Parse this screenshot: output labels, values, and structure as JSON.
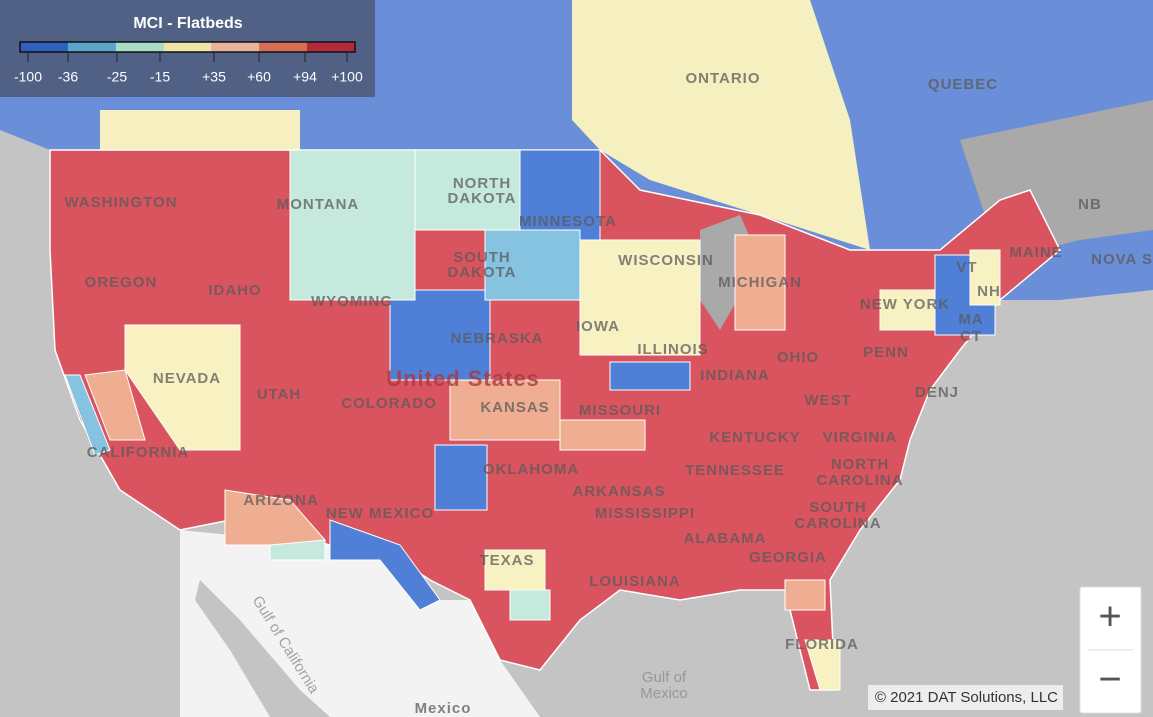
{
  "legend": {
    "title": "MCI - Flatbeds",
    "colors": [
      "#2f5fbf",
      "#5aa5cc",
      "#a8dcc8",
      "#eee4a8",
      "#e8b39a",
      "#d46f55",
      "#b22b3a"
    ],
    "labels": [
      "-100",
      "-36",
      "-25",
      "-15",
      "+35",
      "+60",
      "+94",
      "+100"
    ]
  },
  "map": {
    "labels": [
      "ONTARIO",
      "QUEBEC",
      "NORTH",
      "DAKOTA",
      "SOUTH",
      "DAKOTA",
      "MINNESOTA",
      "WISCONSIN",
      "MICHIGAN",
      "WASHINGTON",
      "MONTANA",
      "OREGON",
      "IDAHO",
      "WYOMING",
      "NEBRASKA",
      "IOWA",
      "ILLINOIS",
      "INDIANA",
      "OHIO",
      "PENN",
      "NEW YORK",
      "MAINE",
      "NB",
      "NOVA SC",
      "VT",
      "NH",
      "MA",
      "CT",
      "NEVADA",
      "UTAH",
      "COLORADO",
      "KANSAS",
      "MISSOURI",
      "KENTUCKY",
      "WEST",
      "VIRGINIA",
      "DENJ",
      "CALIFORNIA",
      "ARIZONA",
      "NEW MEXICO",
      "OKLAHOMA",
      "ARKANSAS",
      "TENNESSEE",
      "NORTH",
      "CAROLINA",
      "SOUTH",
      "CAROLINA",
      "MISSISSIPPI",
      "ALABAMA",
      "GEORGIA",
      "TEXAS",
      "LOUISIANA",
      "FLORIDA",
      "Mexico"
    ],
    "country": "United States",
    "waters": [
      "Gulf of",
      "Mexico",
      "Gulf of California"
    ]
  },
  "attribution": "© 2021 DAT Solutions, LLC",
  "zoom": {
    "in": "+",
    "out": "−"
  }
}
